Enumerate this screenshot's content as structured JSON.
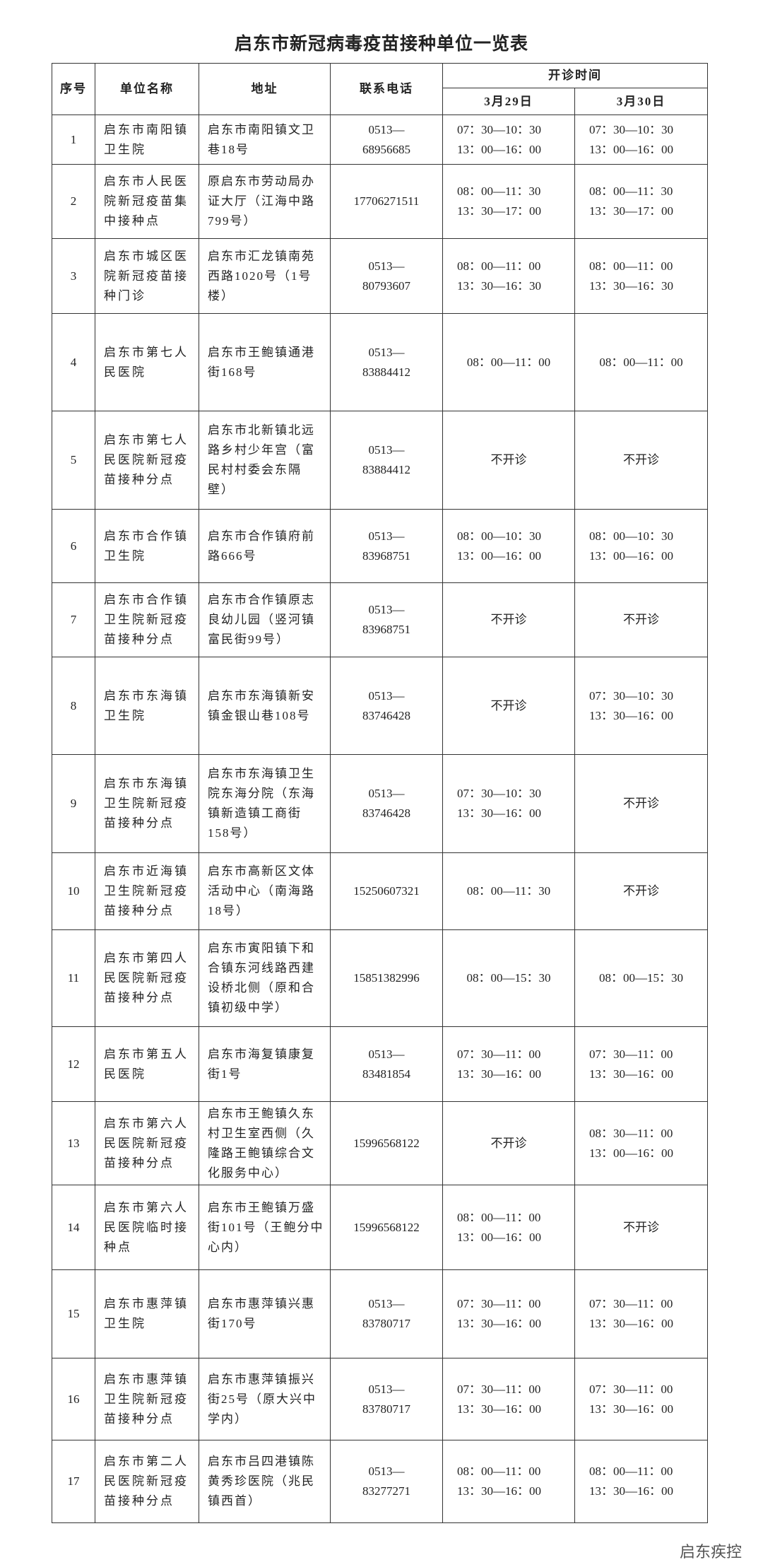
{
  "title": "启东市新冠病毒疫苗接种单位一览表",
  "table": {
    "header": {
      "no": "序号",
      "name": "单位名称",
      "address": "地址",
      "phone": "联系电话",
      "hours": "开诊时间",
      "day1": "3月29日",
      "day2": "3月30日"
    },
    "rows": [
      [
        [
          "1"
        ],
        [
          "启东市南阳镇",
          "卫生院"
        ],
        [
          "启东市南阳镇文卫",
          "巷18号"
        ],
        [
          "0513—",
          "68956685"
        ],
        [
          "07：30—10：30",
          "13：00—16：00"
        ],
        [
          "07：30—10：30",
          "13：00—16：00"
        ]
      ],
      [
        [
          "2"
        ],
        [
          "启东市人民医",
          "院新冠疫苗集",
          "中接种点"
        ],
        [
          "原启东市劳动局办",
          "证大厅（江海中路",
          "799号）"
        ],
        [
          "17706271511"
        ],
        [
          "08：00—11：30",
          "13：30—17：00"
        ],
        [
          "08：00—11：30",
          "13：30—17：00"
        ]
      ],
      [
        [
          "3"
        ],
        [
          "启东市城区医",
          "院新冠疫苗接",
          "种门诊"
        ],
        [
          "启东市汇龙镇南苑",
          "西路1020号（1号",
          "楼）"
        ],
        [
          "0513—",
          "80793607"
        ],
        [
          "08：00—11：00",
          "13：30—16：30"
        ],
        [
          "08：00—11：00",
          "13：30—16：30"
        ]
      ],
      [
        [
          "4"
        ],
        [
          "启东市第七人",
          "民医院"
        ],
        [
          "启东市王鲍镇通港",
          "街168号"
        ],
        [
          "0513—",
          "83884412"
        ],
        [
          "08：00—11：00"
        ],
        [
          "08：00—11：00"
        ]
      ],
      [
        [
          "5"
        ],
        [
          "启东市第七人",
          "民医院新冠疫",
          "苗接种分点"
        ],
        [
          "启东市北新镇北远",
          "路乡村少年宫（富",
          "民村村委会东隔",
          "壁）"
        ],
        [
          "0513—",
          "83884412"
        ],
        [
          "不开诊"
        ],
        [
          "不开诊"
        ]
      ],
      [
        [
          "6"
        ],
        [
          "启东市合作镇",
          "卫生院"
        ],
        [
          "启东市合作镇府前",
          "路666号"
        ],
        [
          "0513—",
          "83968751"
        ],
        [
          "08：00—10：30",
          "13：00—16：00"
        ],
        [
          "08：00—10：30",
          "13：00—16：00"
        ]
      ],
      [
        [
          "7"
        ],
        [
          "启东市合作镇",
          "卫生院新冠疫",
          "苗接种分点"
        ],
        [
          "启东市合作镇原志",
          "良幼儿园（竖河镇",
          "富民街99号）"
        ],
        [
          "0513—",
          "83968751"
        ],
        [
          "不开诊"
        ],
        [
          "不开诊"
        ]
      ],
      [
        [
          "8"
        ],
        [
          "启东市东海镇",
          "卫生院"
        ],
        [
          "启东市东海镇新安",
          "镇金银山巷108号"
        ],
        [
          "0513—",
          "83746428"
        ],
        [
          "不开诊"
        ],
        [
          "07：30—10：30",
          "13：30—16：00"
        ]
      ],
      [
        [
          "9"
        ],
        [
          "启东市东海镇",
          "卫生院新冠疫",
          "苗接种分点"
        ],
        [
          "启东市东海镇卫生",
          "院东海分院（东海",
          "镇新造镇工商街",
          "158号）"
        ],
        [
          "0513—",
          "83746428"
        ],
        [
          "07：30—10：30",
          "13：30—16：00"
        ],
        [
          "不开诊"
        ]
      ],
      [
        [
          "10"
        ],
        [
          "启东市近海镇",
          "卫生院新冠疫",
          "苗接种分点"
        ],
        [
          "启东市高新区文体",
          "活动中心（南海路",
          "18号）"
        ],
        [
          "15250607321"
        ],
        [
          "08：00—11：30"
        ],
        [
          "不开诊"
        ]
      ],
      [
        [
          "11"
        ],
        [
          "启东市第四人",
          "民医院新冠疫",
          "苗接种分点"
        ],
        [
          "启东市寅阳镇下和",
          "合镇东河线路西建",
          "设桥北侧（原和合",
          "镇初级中学）"
        ],
        [
          "15851382996"
        ],
        [
          "08：00—15：30"
        ],
        [
          "08：00—15：30"
        ]
      ],
      [
        [
          "12"
        ],
        [
          "启东市第五人",
          "民医院"
        ],
        [
          "启东市海复镇康复",
          "街1号"
        ],
        [
          "0513—",
          "83481854"
        ],
        [
          "07：30—11：00",
          "13：30—16：00"
        ],
        [
          "07：30—11：00",
          "13：30—16：00"
        ]
      ],
      [
        [
          "13"
        ],
        [
          "启东市第六人",
          "民医院新冠疫",
          "苗接种分点"
        ],
        [
          "启东市王鲍镇久东",
          "村卫生室西侧（久",
          "隆路王鲍镇综合文",
          "化服务中心）"
        ],
        [
          "15996568122"
        ],
        [
          "不开诊"
        ],
        [
          "08：30—11：00",
          "13：00—16：00"
        ]
      ],
      [
        [
          "14"
        ],
        [
          "启东市第六人",
          "民医院临时接",
          "种点"
        ],
        [
          "启东市王鲍镇万盛",
          "街101号（王鲍分中",
          "心内）"
        ],
        [
          "15996568122"
        ],
        [
          "08：00—11：00",
          "13：00—16：00"
        ],
        [
          "不开诊"
        ]
      ],
      [
        [
          "15"
        ],
        [
          "启东市惠萍镇",
          "卫生院"
        ],
        [
          "启东市惠萍镇兴惠",
          "街170号"
        ],
        [
          "0513—",
          "83780717"
        ],
        [
          "07：30—11：00",
          "13：30—16：00"
        ],
        [
          "07：30—11：00",
          "13：30—16：00"
        ]
      ],
      [
        [
          "16"
        ],
        [
          "启东市惠萍镇",
          "卫生院新冠疫",
          "苗接种分点"
        ],
        [
          "启东市惠萍镇振兴",
          "街25号（原大兴中",
          "学内）"
        ],
        [
          "0513—",
          "83780717"
        ],
        [
          "07：30—11：00",
          "13：30—16：00"
        ],
        [
          "07：30—11：00",
          "13：30—16：00"
        ]
      ],
      [
        [
          "17"
        ],
        [
          "启东市第二人",
          "民医院新冠疫",
          "苗接种分点"
        ],
        [
          "启东市吕四港镇陈",
          "黄秀珍医院（兆民",
          "镇西首）"
        ],
        [
          "0513—",
          "83277271"
        ],
        [
          "08：00—11：00",
          "13：30—16：00"
        ],
        [
          "08：00—11：00",
          "13：30—16：00"
        ]
      ]
    ]
  },
  "watermark": "启东疾控"
}
